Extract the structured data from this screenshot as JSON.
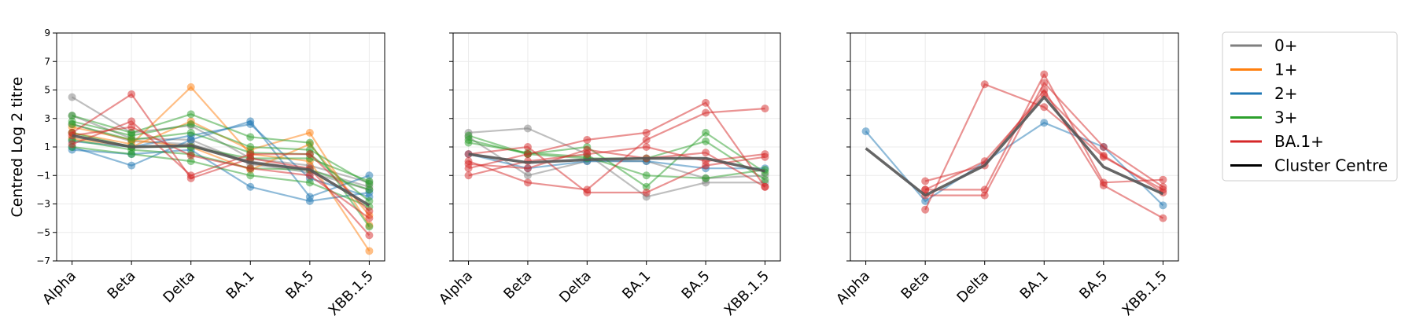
{
  "chart_data": [
    {
      "type": "line",
      "ylabel": "Centred Log 2 titre",
      "categories": [
        "Alpha",
        "Beta",
        "Delta",
        "BA.1",
        "BA.5",
        "XBB.1.5"
      ],
      "ylim": [
        -7,
        9
      ],
      "yticks": [
        9,
        7,
        5,
        3,
        1,
        -1,
        -3,
        -5,
        -7
      ],
      "grid": true,
      "series": [
        {
          "name": "0+",
          "color": "#7f7f7f",
          "values": [
            4.5,
            2.0,
            2.5,
            0.2,
            -0.3,
            -1.5
          ]
        },
        {
          "name": "0+",
          "color": "#7f7f7f",
          "values": [
            3.2,
            1.6,
            1.5,
            -0.2,
            -0.8,
            -2.0
          ]
        },
        {
          "name": "0+",
          "color": "#7f7f7f",
          "values": [
            2.6,
            1.4,
            1.2,
            0.0,
            -0.6,
            -1.8
          ]
        },
        {
          "name": "1+",
          "color": "#ff7f0e",
          "values": [
            2.0,
            1.2,
            5.2,
            0.5,
            0.0,
            -6.3
          ]
        },
        {
          "name": "1+",
          "color": "#ff7f0e",
          "values": [
            1.6,
            1.0,
            2.8,
            0.8,
            2.0,
            -4.5
          ]
        },
        {
          "name": "1+",
          "color": "#ff7f0e",
          "values": [
            2.4,
            1.5,
            1.0,
            -0.6,
            1.2,
            -3.8
          ]
        },
        {
          "name": "2+",
          "color": "#1f77b4",
          "values": [
            1.0,
            -0.3,
            1.5,
            2.8,
            -2.5,
            -1.0
          ]
        },
        {
          "name": "2+",
          "color": "#1f77b4",
          "values": [
            0.8,
            0.5,
            0.8,
            -1.8,
            -2.8,
            -2.2
          ]
        },
        {
          "name": "2+",
          "color": "#1f77b4",
          "values": [
            1.4,
            1.0,
            1.8,
            2.6,
            -1.2,
            -2.5
          ]
        },
        {
          "name": "3+",
          "color": "#2ca02c",
          "values": [
            3.2,
            2.0,
            3.3,
            1.7,
            1.3,
            -4.6
          ]
        },
        {
          "name": "3+",
          "color": "#2ca02c",
          "values": [
            2.6,
            1.5,
            2.0,
            0.6,
            0.5,
            -2.8
          ]
        },
        {
          "name": "3+",
          "color": "#2ca02c",
          "values": [
            2.0,
            1.0,
            1.0,
            0.2,
            0.2,
            -1.4
          ]
        },
        {
          "name": "3+",
          "color": "#2ca02c",
          "values": [
            1.5,
            0.8,
            0.5,
            -0.5,
            -0.6,
            -2.0
          ]
        },
        {
          "name": "3+",
          "color": "#2ca02c",
          "values": [
            1.0,
            0.5,
            0.0,
            -1.0,
            -1.5,
            -3.2
          ]
        },
        {
          "name": "3+",
          "color": "#2ca02c",
          "values": [
            2.8,
            1.8,
            2.6,
            1.0,
            0.8,
            -1.6
          ]
        },
        {
          "name": "BA.1+",
          "color": "#d62728",
          "values": [
            2.0,
            4.7,
            -1.2,
            0.2,
            -0.5,
            -5.2
          ]
        },
        {
          "name": "BA.1+",
          "color": "#d62728",
          "values": [
            1.2,
            2.8,
            -1.0,
            0.5,
            0.5,
            -3.5
          ]
        },
        {
          "name": "BA.1+",
          "color": "#d62728",
          "values": [
            1.8,
            2.4,
            0.4,
            -0.5,
            -1.0,
            -4.0
          ]
        },
        {
          "name": "Cluster Centre",
          "color": "#555555",
          "values": [
            1.8,
            1.0,
            1.1,
            -0.1,
            -0.6,
            -3.1
          ]
        }
      ]
    },
    {
      "type": "line",
      "categories": [
        "Alpha",
        "Beta",
        "Delta",
        "BA.1",
        "BA.5",
        "XBB.1.5"
      ],
      "ylim": [
        -7,
        9
      ],
      "grid": true,
      "series": [
        {
          "name": "0+",
          "color": "#7f7f7f",
          "values": [
            2.0,
            2.3,
            0.5,
            -2.5,
            -1.5,
            -1.5
          ]
        },
        {
          "name": "0+",
          "color": "#7f7f7f",
          "values": [
            1.7,
            -1.0,
            0.0,
            0.0,
            -1.2,
            -1.0
          ]
        },
        {
          "name": "2+",
          "color": "#1f77b4",
          "values": [
            0.5,
            -0.5,
            0.0,
            0.0,
            -0.5,
            -0.5
          ]
        },
        {
          "name": "3+",
          "color": "#2ca02c",
          "values": [
            1.8,
            0.5,
            1.0,
            -1.8,
            2.0,
            -0.8
          ]
        },
        {
          "name": "3+",
          "color": "#2ca02c",
          "values": [
            1.3,
            0.6,
            0.3,
            -1.0,
            -1.2,
            -0.6
          ]
        },
        {
          "name": "3+",
          "color": "#2ca02c",
          "values": [
            1.5,
            0.5,
            0.2,
            0.2,
            1.4,
            -1.3
          ]
        },
        {
          "name": "BA.1+",
          "color": "#d62728",
          "values": [
            -0.5,
            0.5,
            1.5,
            2.0,
            4.1,
            -1.8
          ]
        },
        {
          "name": "BA.1+",
          "color": "#d62728",
          "values": [
            0.0,
            -1.5,
            -2.0,
            1.5,
            3.4,
            3.7
          ]
        },
        {
          "name": "BA.1+",
          "color": "#d62728",
          "values": [
            -1.0,
            0.0,
            0.5,
            1.0,
            0.0,
            0.5
          ]
        },
        {
          "name": "BA.1+",
          "color": "#d62728",
          "values": [
            0.5,
            1.0,
            -2.2,
            -2.2,
            -0.3,
            0.3
          ]
        },
        {
          "name": "BA.1+",
          "color": "#d62728",
          "values": [
            -0.2,
            -0.5,
            0.8,
            0.2,
            0.6,
            -1.8
          ]
        },
        {
          "name": "Cluster Centre",
          "color": "#555555",
          "values": [
            0.5,
            -0.1,
            0.1,
            0.2,
            0.2,
            -0.7
          ]
        }
      ]
    },
    {
      "type": "line",
      "categories": [
        "Alpha",
        "Beta",
        "Delta",
        "BA.1",
        "BA.5",
        "XBB.1.5"
      ],
      "ylim": [
        -7,
        9
      ],
      "grid": true,
      "series": [
        {
          "name": "2+",
          "color": "#1f77b4",
          "values": [
            2.1,
            -2.8,
            null,
            2.7,
            1.0,
            -3.1
          ]
        },
        {
          "name": "BA.1+",
          "color": "#d62728",
          "values": [
            null,
            -3.4,
            5.4,
            3.8,
            0.3,
            -2.0
          ]
        },
        {
          "name": "BA.1+",
          "color": "#d62728",
          "values": [
            null,
            -2.0,
            -2.0,
            6.1,
            -1.5,
            -1.3
          ]
        },
        {
          "name": "BA.1+",
          "color": "#d62728",
          "values": [
            null,
            -1.4,
            -0.3,
            5.0,
            -1.7,
            -4.0
          ]
        },
        {
          "name": "BA.1+",
          "color": "#d62728",
          "values": [
            null,
            -2.4,
            -2.4,
            5.5,
            1.0,
            -1.8
          ]
        },
        {
          "name": "BA.1+",
          "color": "#d62728",
          "values": [
            null,
            -2.0,
            0.0,
            4.7,
            0.4,
            -2.2
          ]
        },
        {
          "name": "Cluster Centre",
          "color": "#555555",
          "values": [
            0.9,
            -2.4,
            -0.3,
            4.5,
            -0.4,
            -2.3
          ]
        }
      ]
    }
  ],
  "legend": {
    "entries": [
      {
        "label": "0+",
        "color": "#7f7f7f"
      },
      {
        "label": "1+",
        "color": "#ff7f0e"
      },
      {
        "label": "2+",
        "color": "#1f77b4"
      },
      {
        "label": "3+",
        "color": "#2ca02c"
      },
      {
        "label": "BA.1+",
        "color": "#d62728"
      },
      {
        "label": "Cluster Centre",
        "color": "#000000"
      }
    ]
  }
}
